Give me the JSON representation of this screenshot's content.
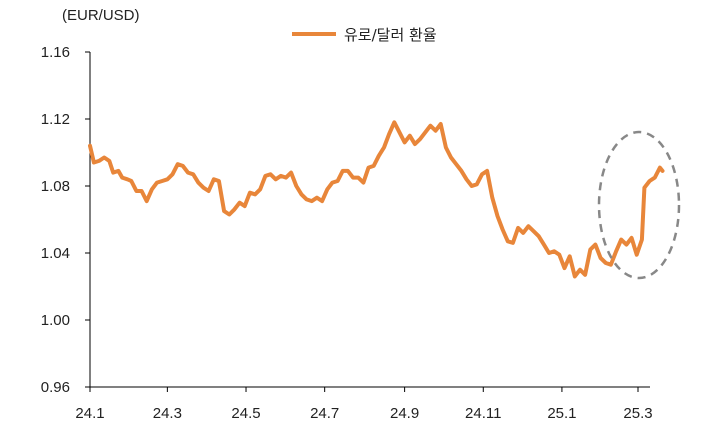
{
  "colors": {
    "series": "#E8863A",
    "axis": "#000000",
    "highlight": "#888888"
  },
  "chart_data": {
    "type": "line",
    "ylabel": "(EUR/USD)",
    "ylim": [
      0.96,
      1.16
    ],
    "yticks": [
      "0.96",
      "1.00",
      "1.04",
      "1.08",
      "1.12",
      "1.16"
    ],
    "xlim": [
      "2024-01-01",
      "2025-03-25"
    ],
    "xticks": [
      {
        "label": "24.1",
        "date": "2024-01-01"
      },
      {
        "label": "24.3",
        "date": "2024-03-01"
      },
      {
        "label": "24.5",
        "date": "2024-05-01"
      },
      {
        "label": "24.7",
        "date": "2024-07-01"
      },
      {
        "label": "24.9",
        "date": "2024-09-01"
      },
      {
        "label": "24.11",
        "date": "2024-11-01"
      },
      {
        "label": "25.1",
        "date": "2025-01-01"
      },
      {
        "label": "25.3",
        "date": "2025-03-01"
      }
    ],
    "grid": false,
    "legend": "top",
    "annotation": "dashed ellipse around early-March 2025 rebound",
    "series": [
      {
        "name": "유로/달러 환율",
        "points": [
          [
            "2024-01-01",
            1.104
          ],
          [
            "2024-01-04",
            1.094
          ],
          [
            "2024-01-08",
            1.095
          ],
          [
            "2024-01-12",
            1.097
          ],
          [
            "2024-01-16",
            1.095
          ],
          [
            "2024-01-19",
            1.088
          ],
          [
            "2024-01-23",
            1.089
          ],
          [
            "2024-01-26",
            1.085
          ],
          [
            "2024-01-30",
            1.084
          ],
          [
            "2024-02-02",
            1.083
          ],
          [
            "2024-02-06",
            1.077
          ],
          [
            "2024-02-10",
            1.077
          ],
          [
            "2024-02-14",
            1.071
          ],
          [
            "2024-02-18",
            1.078
          ],
          [
            "2024-02-22",
            1.082
          ],
          [
            "2024-02-26",
            1.083
          ],
          [
            "2024-03-01",
            1.084
          ],
          [
            "2024-03-05",
            1.087
          ],
          [
            "2024-03-09",
            1.093
          ],
          [
            "2024-03-13",
            1.092
          ],
          [
            "2024-03-17",
            1.088
          ],
          [
            "2024-03-21",
            1.087
          ],
          [
            "2024-03-25",
            1.082
          ],
          [
            "2024-03-29",
            1.079
          ],
          [
            "2024-04-02",
            1.077
          ],
          [
            "2024-04-06",
            1.084
          ],
          [
            "2024-04-10",
            1.083
          ],
          [
            "2024-04-14",
            1.065
          ],
          [
            "2024-04-18",
            1.063
          ],
          [
            "2024-04-22",
            1.066
          ],
          [
            "2024-04-26",
            1.07
          ],
          [
            "2024-04-30",
            1.068
          ],
          [
            "2024-05-04",
            1.076
          ],
          [
            "2024-05-08",
            1.075
          ],
          [
            "2024-05-12",
            1.078
          ],
          [
            "2024-05-16",
            1.086
          ],
          [
            "2024-05-20",
            1.087
          ],
          [
            "2024-05-24",
            1.084
          ],
          [
            "2024-05-28",
            1.086
          ],
          [
            "2024-06-01",
            1.085
          ],
          [
            "2024-06-05",
            1.088
          ],
          [
            "2024-06-09",
            1.08
          ],
          [
            "2024-06-13",
            1.075
          ],
          [
            "2024-06-17",
            1.072
          ],
          [
            "2024-06-21",
            1.071
          ],
          [
            "2024-06-25",
            1.073
          ],
          [
            "2024-06-29",
            1.071
          ],
          [
            "2024-07-03",
            1.078
          ],
          [
            "2024-07-07",
            1.082
          ],
          [
            "2024-07-11",
            1.083
          ],
          [
            "2024-07-15",
            1.089
          ],
          [
            "2024-07-19",
            1.089
          ],
          [
            "2024-07-23",
            1.085
          ],
          [
            "2024-07-27",
            1.085
          ],
          [
            "2024-07-31",
            1.082
          ],
          [
            "2024-08-04",
            1.091
          ],
          [
            "2024-08-08",
            1.092
          ],
          [
            "2024-08-12",
            1.098
          ],
          [
            "2024-08-16",
            1.103
          ],
          [
            "2024-08-20",
            1.111
          ],
          [
            "2024-08-24",
            1.118
          ],
          [
            "2024-08-28",
            1.112
          ],
          [
            "2024-09-01",
            1.106
          ],
          [
            "2024-09-05",
            1.11
          ],
          [
            "2024-09-09",
            1.105
          ],
          [
            "2024-09-13",
            1.108
          ],
          [
            "2024-09-17",
            1.112
          ],
          [
            "2024-09-21",
            1.116
          ],
          [
            "2024-09-25",
            1.113
          ],
          [
            "2024-09-29",
            1.117
          ],
          [
            "2024-10-03",
            1.103
          ],
          [
            "2024-10-07",
            1.097
          ],
          [
            "2024-10-11",
            1.093
          ],
          [
            "2024-10-15",
            1.089
          ],
          [
            "2024-10-19",
            1.084
          ],
          [
            "2024-10-23",
            1.08
          ],
          [
            "2024-10-27",
            1.081
          ],
          [
            "2024-10-31",
            1.087
          ],
          [
            "2024-11-04",
            1.089
          ],
          [
            "2024-11-08",
            1.073
          ],
          [
            "2024-11-12",
            1.062
          ],
          [
            "2024-11-16",
            1.054
          ],
          [
            "2024-11-20",
            1.047
          ],
          [
            "2024-11-24",
            1.046
          ],
          [
            "2024-11-28",
            1.055
          ],
          [
            "2024-12-02",
            1.052
          ],
          [
            "2024-12-06",
            1.056
          ],
          [
            "2024-12-10",
            1.053
          ],
          [
            "2024-12-14",
            1.05
          ],
          [
            "2024-12-18",
            1.045
          ],
          [
            "2024-12-22",
            1.04
          ],
          [
            "2024-12-26",
            1.041
          ],
          [
            "2024-12-30",
            1.039
          ],
          [
            "2025-01-03",
            1.031
          ],
          [
            "2025-01-07",
            1.038
          ],
          [
            "2025-01-11",
            1.026
          ],
          [
            "2025-01-15",
            1.03
          ],
          [
            "2025-01-19",
            1.027
          ],
          [
            "2025-01-23",
            1.042
          ],
          [
            "2025-01-27",
            1.045
          ],
          [
            "2025-01-31",
            1.037
          ],
          [
            "2025-02-04",
            1.034
          ],
          [
            "2025-02-08",
            1.033
          ],
          [
            "2025-02-12",
            1.041
          ],
          [
            "2025-02-16",
            1.048
          ],
          [
            "2025-02-20",
            1.045
          ],
          [
            "2025-02-24",
            1.049
          ],
          [
            "2025-02-28",
            1.039
          ],
          [
            "2025-03-04",
            1.048
          ],
          [
            "2025-03-06",
            1.079
          ],
          [
            "2025-03-10",
            1.083
          ],
          [
            "2025-03-14",
            1.085
          ],
          [
            "2025-03-18",
            1.091
          ],
          [
            "2025-03-20",
            1.089
          ]
        ]
      }
    ]
  }
}
